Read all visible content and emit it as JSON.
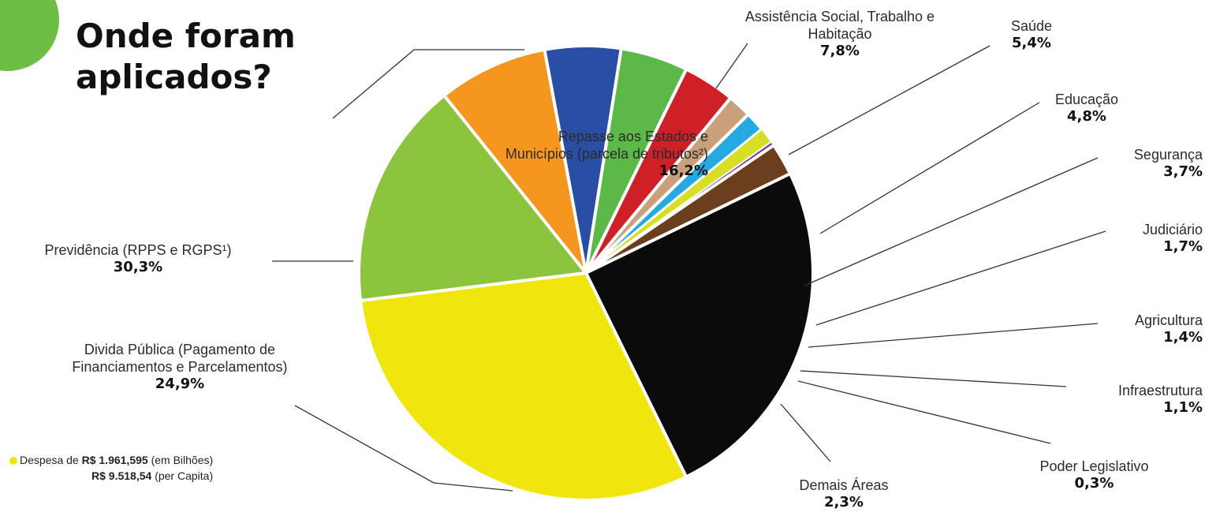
{
  "title": {
    "line1": "Onde foram",
    "line2": "aplicados?"
  },
  "footnote": {
    "line1_prefix": "Despesa de",
    "line1_amount": "R$ 1.961,595",
    "line1_suffix": "(em Bilhões)",
    "line2_amount": "R$ 9.518,54",
    "line2_suffix": "(per Capita)"
  },
  "chart_data": {
    "type": "pie",
    "title": "Onde foram aplicados?",
    "slices": [
      {
        "label": "Repasse aos Estados e\nMunicípios (parcela de tributos²)",
        "display": "16,2%",
        "value": 16.2,
        "color": "#8cc43e"
      },
      {
        "label": "Assistência Social, Trabalho e\nHabitação",
        "display": "7,8%",
        "value": 7.8,
        "color": "#f5961e"
      },
      {
        "label": "Saúde",
        "display": "5,4%",
        "value": 5.4,
        "color": "#2a4ea3"
      },
      {
        "label": "Educação",
        "display": "4,8%",
        "value": 4.8,
        "color": "#5cb947"
      },
      {
        "label": "Segurança",
        "display": "3,7%",
        "value": 3.7,
        "color": "#cf2027"
      },
      {
        "label": "Judiciário",
        "display": "1,7%",
        "value": 1.7,
        "color": "#c9a07b"
      },
      {
        "label": "Agricultura",
        "display": "1,4%",
        "value": 1.4,
        "color": "#26a9e0"
      },
      {
        "label": "Infraestrutura",
        "display": "1,1%",
        "value": 1.1,
        "color": "#d6df23"
      },
      {
        "label": "Poder Legislativo",
        "display": "0,3%",
        "value": 0.3,
        "color": "#7b2d8e"
      },
      {
        "label": "Demais Áreas",
        "display": "2,3%",
        "value": 2.3,
        "color": "#6b3f1e"
      },
      {
        "label": "Divida Pública (Pagamento de\nFinanciamentos e Parcelamentos)",
        "display": "24,9%",
        "value": 24.9,
        "color": "#0b0b0b"
      },
      {
        "label": "Previdência (RPPS e RGPS¹)",
        "display": "30,3%",
        "value": 30.3,
        "color": "#f0e60e"
      }
    ]
  }
}
